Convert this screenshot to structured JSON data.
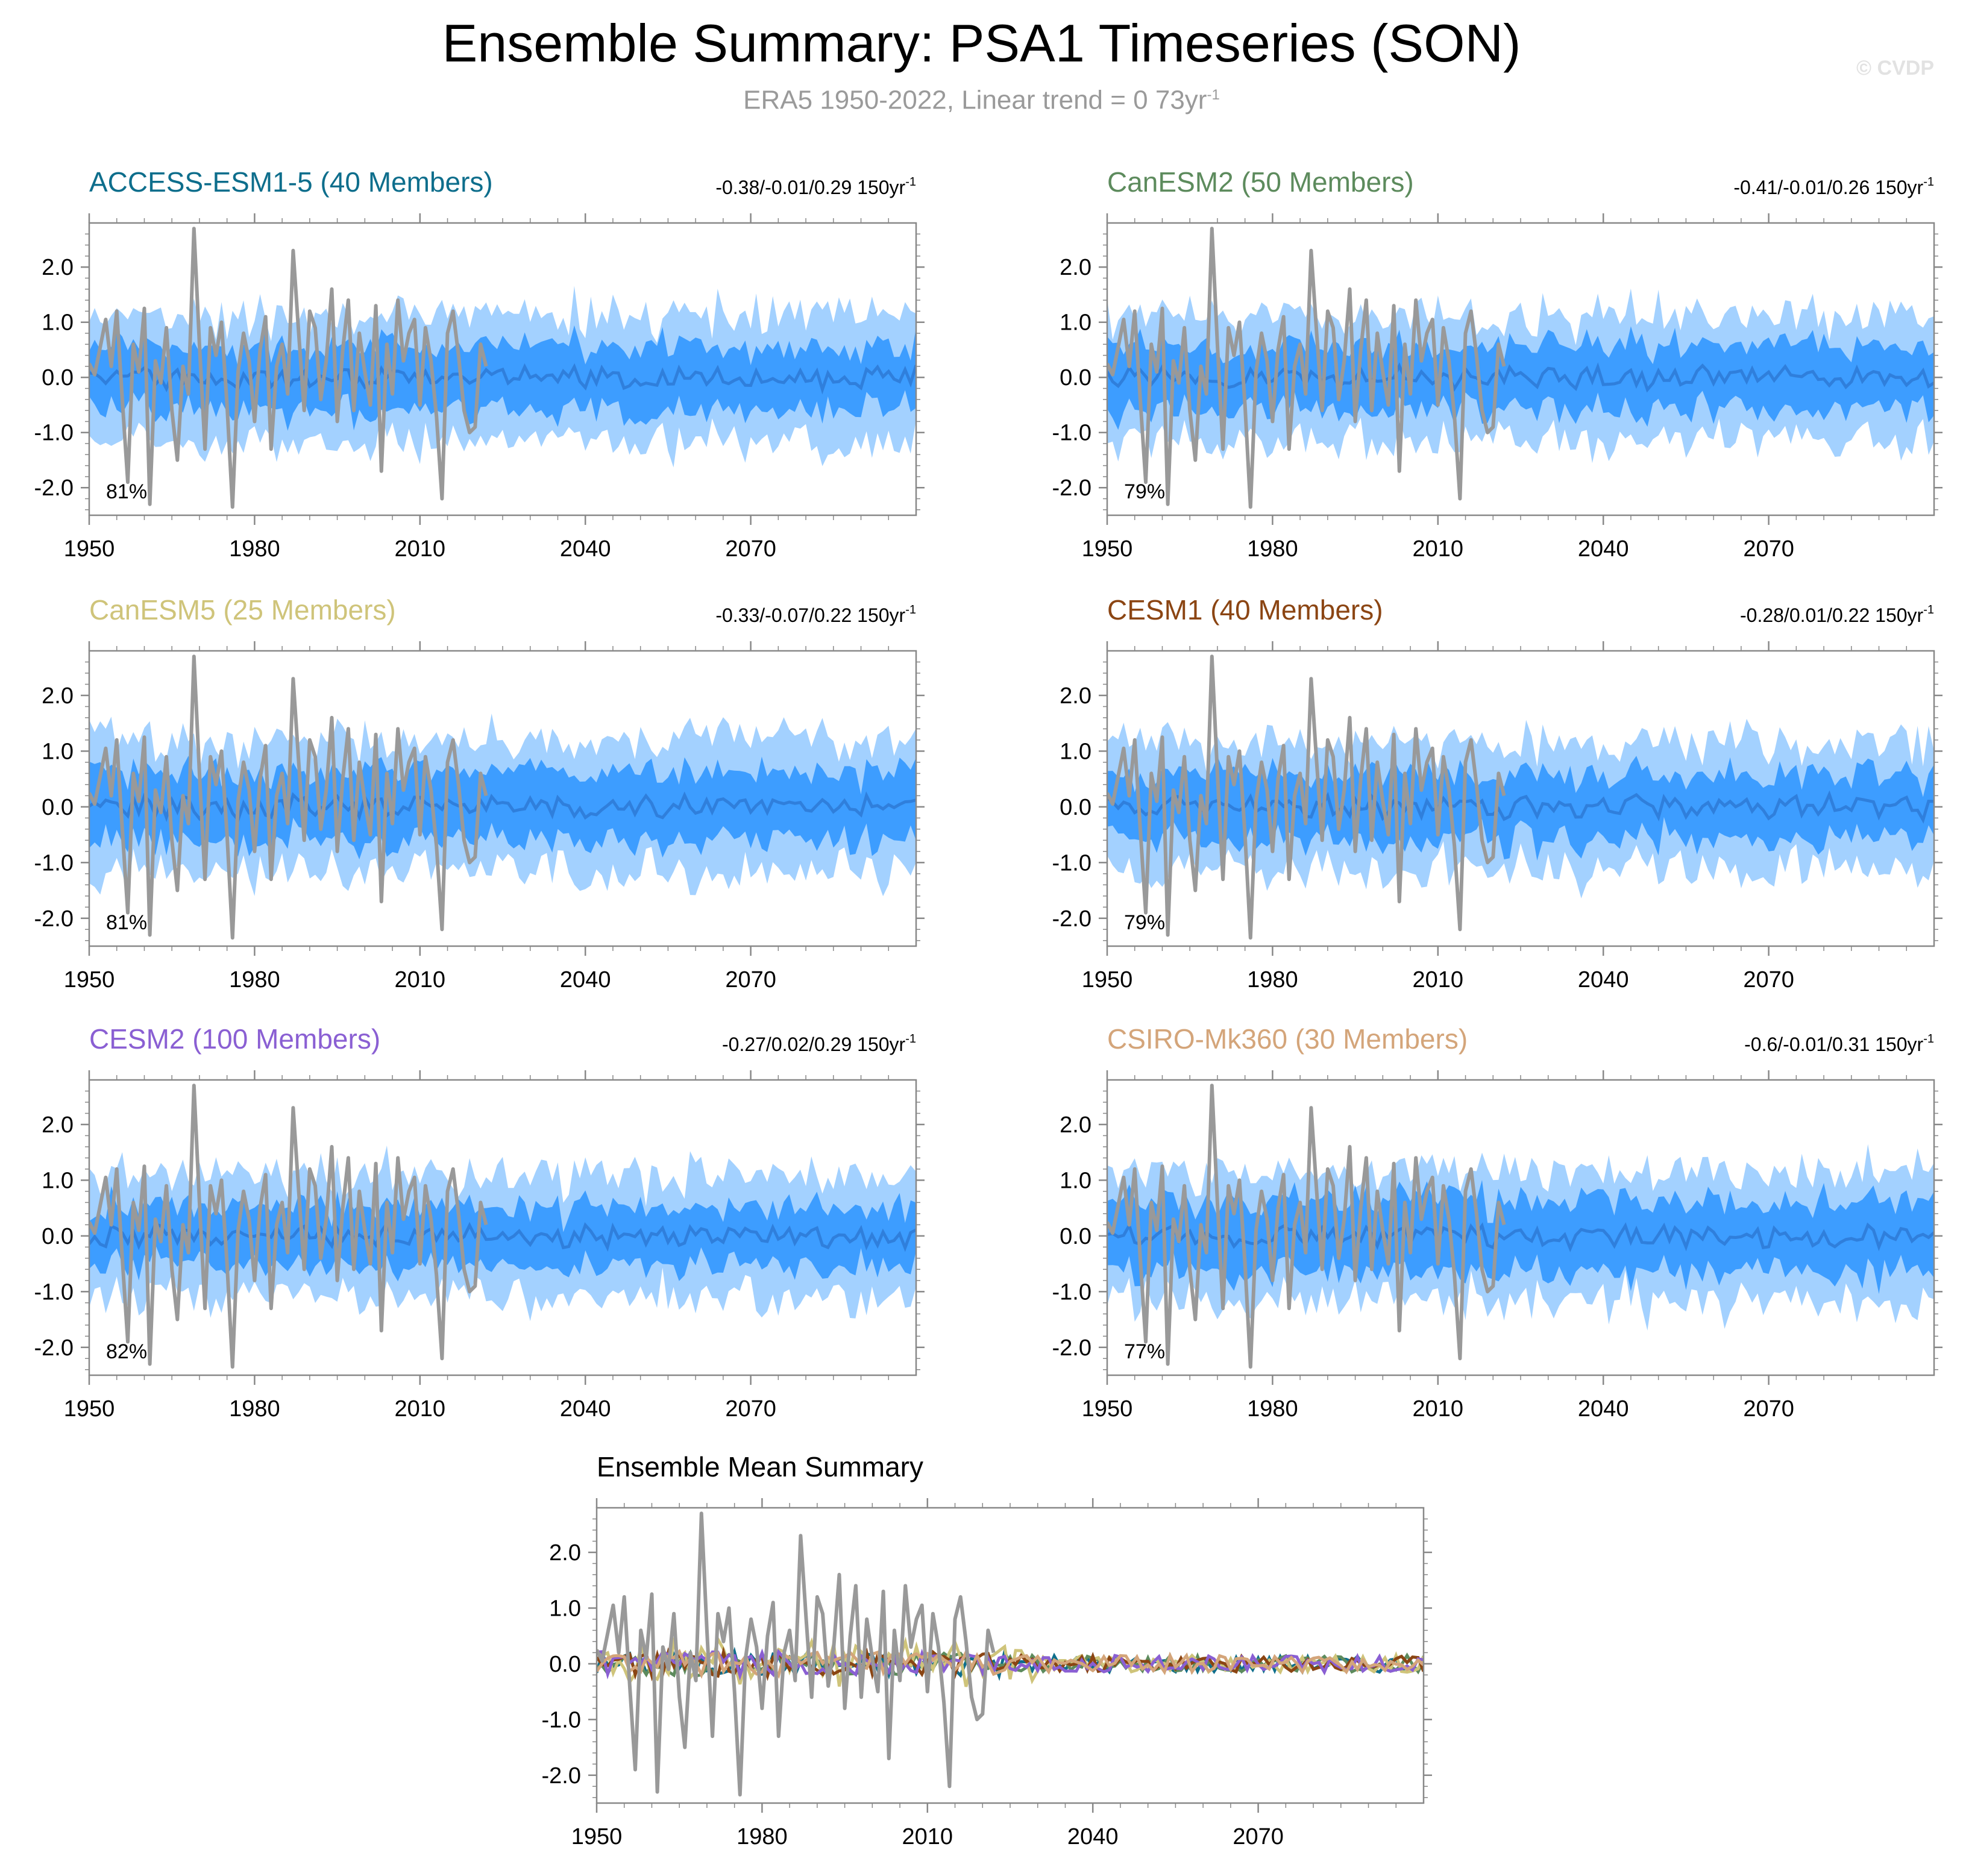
{
  "figure": {
    "title": "Ensemble Summary: PSA1 Timeseries (SON)",
    "subtitle_prefix": "ERA5 1950-2022, Linear trend = 0 73yr",
    "subtitle_exp": "-1",
    "watermark": "© CVDP"
  },
  "colors": {
    "outer_band": "#a3d1ff",
    "inner_band": "#3d9dff",
    "ensemble_mean": "#2f7fdc",
    "observed": "#999999",
    "axis": "#888888"
  },
  "chart_data": [
    {
      "type": "area",
      "title": "ACCESS-ESM1-5 (40 Members)",
      "title_color": "#0e6e8c",
      "trend": "-0.38/-0.01/0.29 150yr",
      "trend_exp": "-1",
      "pct": "81%",
      "seed": 11,
      "xlim": [
        1950,
        2100
      ],
      "ylim": [
        -2.5,
        2.8
      ],
      "xticks": [
        1950,
        1980,
        2010,
        2040,
        2070
      ],
      "xtick_labels": [
        "1950",
        "1980",
        "2010",
        "2040",
        "2070"
      ],
      "yticks": [
        2.0,
        1.0,
        0.0,
        -1.0,
        -2.0
      ],
      "ytick_labels": [
        "2.0",
        "1.0",
        "0.0",
        "-1.0",
        "-2.0"
      ],
      "outer_spread": 1.05,
      "inner_spread": 0.55
    },
    {
      "type": "area",
      "title": "CanESM2 (50 Members)",
      "title_color": "#5d8b5d",
      "trend": "-0.41/-0.01/0.26 150yr",
      "trend_exp": "-1",
      "pct": "79%",
      "seed": 23,
      "xlim": [
        1950,
        2100
      ],
      "ylim": [
        -2.5,
        2.8
      ],
      "xticks": [
        1950,
        1980,
        2010,
        2040,
        2070
      ],
      "xtick_labels": [
        "1950",
        "1980",
        "2010",
        "2040",
        "2070"
      ],
      "yticks": [
        2.0,
        1.0,
        0.0,
        -1.0,
        -2.0
      ],
      "ytick_labels": [
        "2.0",
        "1.0",
        "0.0",
        "-1.0",
        "-2.0"
      ],
      "outer_spread": 1.05,
      "inner_spread": 0.55
    },
    {
      "type": "area",
      "title": "CanESM5 (25 Members)",
      "title_color": "#cfc47a",
      "trend": "-0.33/-0.07/0.22 150yr",
      "trend_exp": "-1",
      "pct": "81%",
      "seed": 37,
      "xlim": [
        1950,
        2100
      ],
      "ylim": [
        -2.5,
        2.8
      ],
      "xticks": [
        1950,
        1980,
        2010,
        2040,
        2070
      ],
      "xtick_labels": [
        "1950",
        "1980",
        "2010",
        "2040",
        "2070"
      ],
      "yticks": [
        2.0,
        1.0,
        0.0,
        -1.0,
        -2.0
      ],
      "ytick_labels": [
        "2.0",
        "1.0",
        "0.0",
        "-1.0",
        "-2.0"
      ],
      "outer_spread": 1.1,
      "inner_spread": 0.6
    },
    {
      "type": "area",
      "title": "CESM1 (40 Members)",
      "title_color": "#8b4513",
      "trend": "-0.28/0.01/0.22 150yr",
      "trend_exp": "-1",
      "pct": "79%",
      "seed": 41,
      "xlim": [
        1950,
        2100
      ],
      "ylim": [
        -2.5,
        2.8
      ],
      "xticks": [
        1950,
        1980,
        2010,
        2040,
        2070
      ],
      "xtick_labels": [
        "1950",
        "1980",
        "2010",
        "2040",
        "2070"
      ],
      "yticks": [
        2.0,
        1.0,
        0.0,
        -1.0,
        -2.0
      ],
      "ytick_labels": [
        "2.0",
        "1.0",
        "0.0",
        "-1.0",
        "-2.0"
      ],
      "outer_spread": 1.05,
      "inner_spread": 0.55
    },
    {
      "type": "area",
      "title": "CESM2 (100 Members)",
      "title_color": "#8a5fd3",
      "trend": "-0.27/0.02/0.29 150yr",
      "trend_exp": "-1",
      "pct": "82%",
      "seed": 53,
      "xlim": [
        1950,
        2100
      ],
      "ylim": [
        -2.5,
        2.8
      ],
      "xticks": [
        1950,
        1980,
        2010,
        2040,
        2070
      ],
      "xtick_labels": [
        "1950",
        "1980",
        "2010",
        "2040",
        "2070"
      ],
      "yticks": [
        2.0,
        1.0,
        0.0,
        -1.0,
        -2.0
      ],
      "ytick_labels": [
        "2.0",
        "1.0",
        "0.0",
        "-1.0",
        "-2.0"
      ],
      "outer_spread": 1.0,
      "inner_spread": 0.5
    },
    {
      "type": "area",
      "title": "CSIRO-Mk360 (30 Members)",
      "title_color": "#d4a57a",
      "trend": "-0.6/-0.01/0.31 150yr",
      "trend_exp": "-1",
      "pct": "77%",
      "seed": 67,
      "xlim": [
        1950,
        2100
      ],
      "ylim": [
        -2.5,
        2.8
      ],
      "xticks": [
        1950,
        1980,
        2010,
        2040,
        2070
      ],
      "xtick_labels": [
        "1950",
        "1980",
        "2010",
        "2040",
        "2070"
      ],
      "yticks": [
        2.0,
        1.0,
        0.0,
        -1.0,
        -2.0
      ],
      "ytick_labels": [
        "2.0",
        "1.0",
        "0.0",
        "-1.0",
        "-2.0"
      ],
      "outer_spread": 1.1,
      "inner_spread": 0.6
    },
    {
      "type": "line",
      "title": "Ensemble Mean Summary",
      "title_color": "#000000",
      "xlim": [
        1950,
        2100
      ],
      "ylim": [
        -2.5,
        2.8
      ],
      "xticks": [
        1950,
        1980,
        2010,
        2040,
        2070
      ],
      "xtick_labels": [
        "1950",
        "1980",
        "2010",
        "2040",
        "2070"
      ],
      "yticks": [
        2.0,
        1.0,
        0.0,
        -1.0,
        -2.0
      ],
      "ytick_labels": [
        "2.0",
        "1.0",
        "0.0",
        "-1.0",
        "-2.0"
      ],
      "series_colors": [
        "#0e6e8c",
        "#5d8b5d",
        "#cfc47a",
        "#8b4513",
        "#8a5fd3",
        "#d4a57a"
      ]
    }
  ],
  "observed": {
    "name": "ERA5",
    "start_year": 1950,
    "values": [
      0.25,
      0.05,
      0.55,
      1.05,
      0.2,
      1.2,
      -0.4,
      -1.9,
      0.6,
      0.1,
      1.25,
      -2.3,
      0.3,
      -0.1,
      0.9,
      -0.6,
      -1.5,
      0.2,
      -0.3,
      2.7,
      0.6,
      -1.3,
      0.9,
      0.4,
      1.0,
      -0.5,
      -2.35,
      0.1,
      0.8,
      0.3,
      -0.8,
      0.5,
      1.1,
      -1.3,
      0.2,
      0.6,
      -0.3,
      2.3,
      0.8,
      -0.6,
      1.2,
      0.9,
      -0.4,
      0.3,
      1.6,
      -0.8,
      0.5,
      1.4,
      -0.6,
      0.8,
      0.1,
      -0.5,
      1.3,
      -1.7,
      0.6,
      -0.3,
      1.4,
      0.3,
      0.8,
      1.05,
      -0.5,
      0.9,
      0.3,
      -0.7,
      -2.2,
      0.8,
      1.2,
      0.4,
      -0.6,
      -1.0,
      -0.9,
      0.6,
      0.2
    ]
  }
}
